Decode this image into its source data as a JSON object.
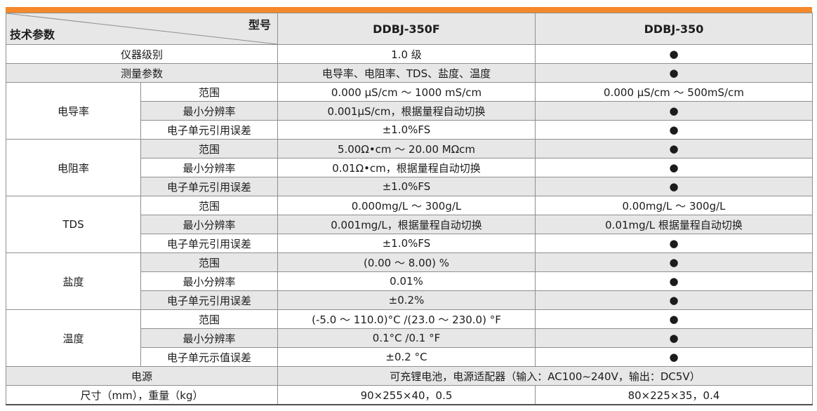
{
  "colors": {
    "accent": "#F5882B",
    "row_shade": "#E7E7E7",
    "border": "#8F8F8F"
  },
  "table": {
    "corner": {
      "top_right": "型号",
      "bottom_left": "技术参数"
    },
    "model_columns": [
      "DDBJ-350F",
      "DDBJ-350"
    ],
    "supported_dot": "●",
    "rows": [
      {
        "param": "仪器级别",
        "param_span": 2,
        "values": [
          "1.0 级",
          "●"
        ]
      },
      {
        "param": "测量参数",
        "param_span": 2,
        "values": [
          "电导率、电阻率、TDS、盐度、温度",
          "●"
        ]
      },
      {
        "group": "电导率",
        "group_rowspan": 3,
        "sub": "范围",
        "values": [
          "0.000 μS/cm ～ 1000 mS/cm",
          "0.000 μS/cm ～ 500mS/cm"
        ]
      },
      {
        "sub": "最小分辨率",
        "values": [
          "0.001μS/cm，根据量程自动切换",
          "●"
        ]
      },
      {
        "sub": "电子单元引用误差",
        "values": [
          "±1.0%FS",
          "●"
        ]
      },
      {
        "group": "电阻率",
        "group_rowspan": 3,
        "sub": "范围",
        "values": [
          "5.00Ω•cm ～ 20.00 MΩcm",
          "●"
        ]
      },
      {
        "sub": "最小分辨率",
        "values": [
          "0.01Ω•cm，根据量程自动切换",
          "●"
        ]
      },
      {
        "sub": "电子单元引用误差",
        "values": [
          "±1.0%FS",
          "●"
        ]
      },
      {
        "group": "TDS",
        "group_rowspan": 3,
        "sub": "范围",
        "values": [
          "0.000mg/L ～ 300g/L",
          "0.00mg/L ～ 300g/L"
        ]
      },
      {
        "sub": "最小分辨率",
        "values": [
          "0.001mg/L，根据量程自动切换",
          "0.01mg/L 根据量程自动切换"
        ]
      },
      {
        "sub": "电子单元引用误差",
        "values": [
          "±1.0%FS",
          "●"
        ]
      },
      {
        "group": "盐度",
        "group_rowspan": 3,
        "sub": "范围",
        "values": [
          "(0.00 ～ 8.00) %",
          "●"
        ]
      },
      {
        "sub": "最小分辨率",
        "values": [
          "0.01%",
          "●"
        ]
      },
      {
        "sub": "电子单元引用误差",
        "values": [
          "±0.2%",
          "●"
        ]
      },
      {
        "group": "温度",
        "group_rowspan": 3,
        "sub": "范围",
        "values": [
          "(-5.0 ～ 110.0)°C /(23.0 ～ 230.0) °F",
          "●"
        ]
      },
      {
        "sub": "最小分辨率",
        "values": [
          "0.1°C /0.1 °F",
          "●"
        ]
      },
      {
        "sub": "电子单元示值误差",
        "values": [
          "±0.2 °C",
          "●"
        ]
      },
      {
        "param": "电源",
        "param_span": 2,
        "values_span": 2,
        "values": [
          "可充锂电池，电源适配器（输入：AC100~240V，输出：DC5V）"
        ]
      },
      {
        "param": "尺寸（mm），重量（kg）",
        "param_span": 2,
        "values": [
          "90×255×40，0.5",
          "80×225×35，0.4"
        ]
      }
    ]
  }
}
